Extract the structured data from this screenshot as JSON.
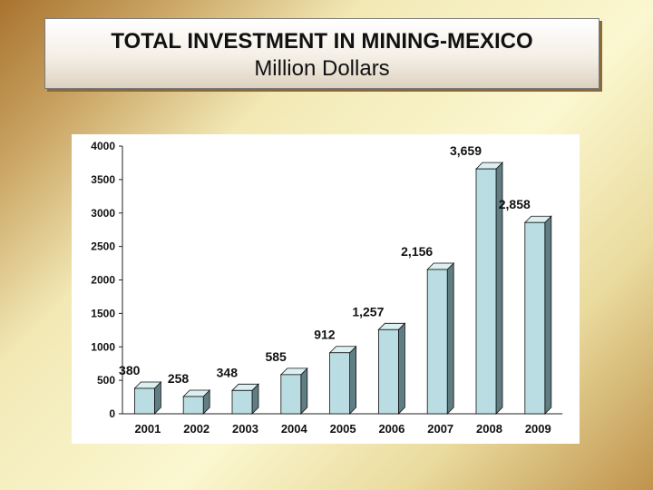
{
  "title": "TOTAL INVESTMENT IN MINING-MEXICO",
  "subtitle": "Million Dollars",
  "colors": {
    "bar_face": "#b9dde2",
    "bar_top": "#dceff1",
    "bar_side": "#5f7d82",
    "bar_edge": "#111111",
    "axis": "#222222",
    "text": "#111111"
  },
  "chart_data": {
    "type": "bar",
    "categories": [
      "2001",
      "2002",
      "2003",
      "2004",
      "2005",
      "2006",
      "2007",
      "2008",
      "2009"
    ],
    "values": [
      380,
      258,
      348,
      585,
      912,
      1257,
      2156,
      3659,
      2858
    ],
    "value_labels": [
      "380",
      "258",
      "348",
      "585",
      "912",
      "1,257",
      "2,156",
      "3,659",
      "2,858"
    ],
    "title": "TOTAL INVESTMENT IN MINING-MEXICO",
    "subtitle": "Million Dollars",
    "xlabel": "",
    "ylabel": "",
    "ylim": [
      0,
      4000
    ],
    "yticks": [
      0,
      500,
      1000,
      1500,
      2000,
      2500,
      3000,
      3500,
      4000
    ],
    "grid": false,
    "legend": "none",
    "style": "3d"
  }
}
